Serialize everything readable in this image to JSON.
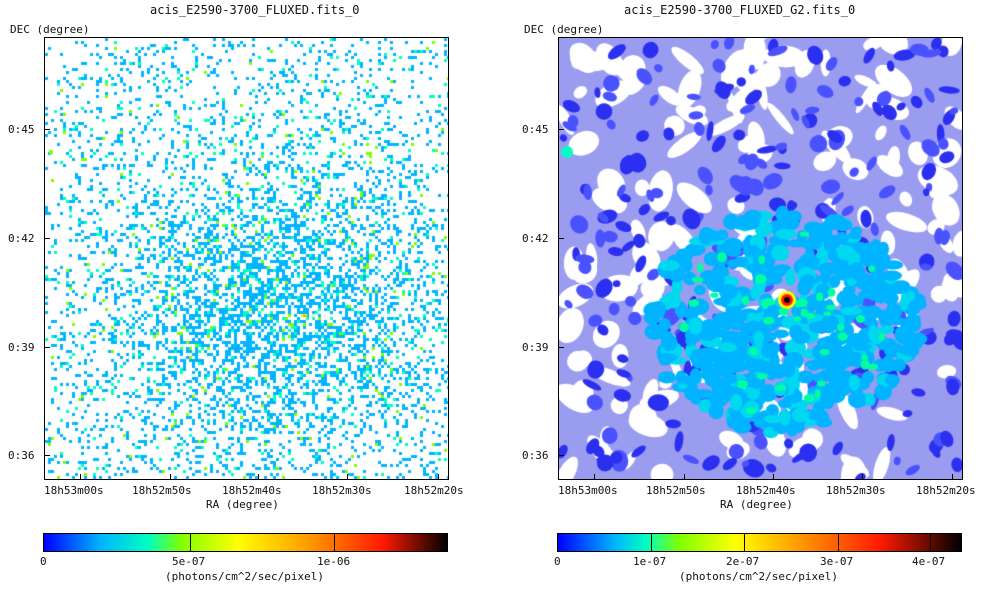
{
  "left": {
    "title": "acis_E2590-3700_FLUXED.fits_0",
    "y_axis_label": "DEC (degree)",
    "x_axis_label": "RA (degree)",
    "y_ticks": [
      "0:45",
      "0:42",
      "0:39",
      "0:36"
    ],
    "x_ticks": [
      "18h53m00s",
      "18h52m50s",
      "18h52m40s",
      "18h52m30s",
      "18h52m20s"
    ],
    "colorbar": {
      "ticks": [
        "0",
        "5e-07",
        "1e-06"
      ],
      "label": "(photons/cm^2/sec/pixel)"
    }
  },
  "right": {
    "title": "acis_E2590-3700_FLUXED_G2.fits_0",
    "y_axis_label": "DEC (degree)",
    "x_axis_label": "RA (degree)",
    "y_ticks": [
      "0:45",
      "0:42",
      "0:39",
      "0:36"
    ],
    "x_ticks": [
      "18h53m00s",
      "18h52m50s",
      "18h52m40s",
      "18h52m30s",
      "18h52m20s"
    ],
    "colorbar": {
      "ticks": [
        "0",
        "1e-07",
        "2e-07",
        "3e-07",
        "4e-07"
      ],
      "label": "(photons/cm^2/sec/pixel)"
    }
  },
  "colormap": [
    "#ffffff",
    "#0000ff",
    "#00b4ff",
    "#00ffc0",
    "#7fff00",
    "#ffff00",
    "#ff9900",
    "#ff1a00",
    "#000000"
  ]
}
